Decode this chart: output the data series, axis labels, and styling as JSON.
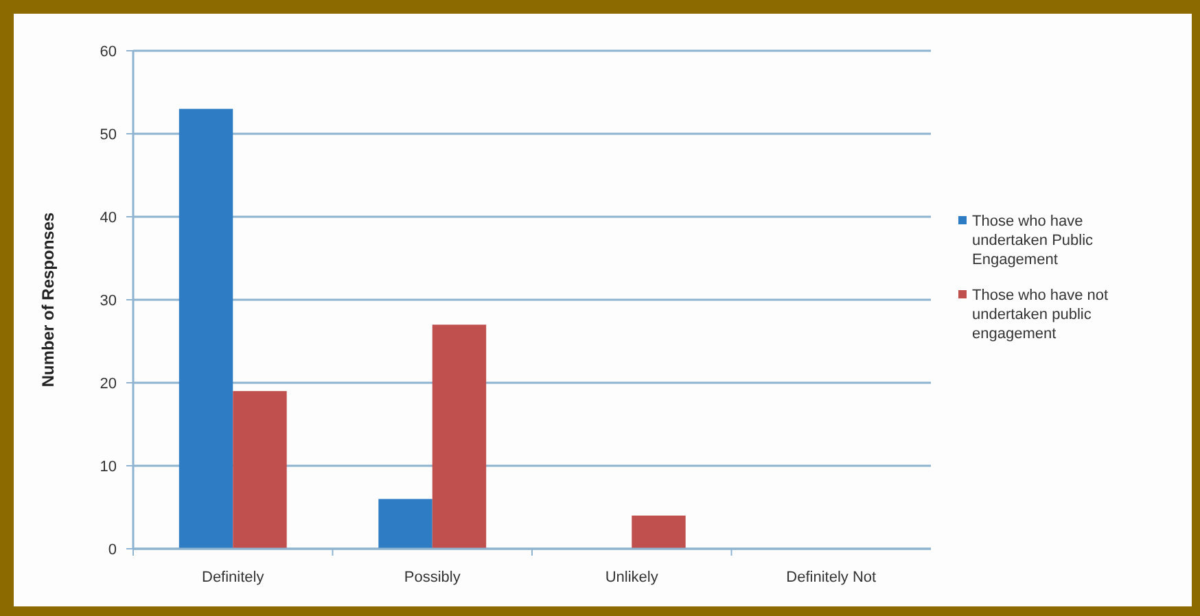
{
  "chart_data": {
    "type": "bar",
    "ylabel": "Number of Responses",
    "categories": [
      "Definitely",
      "Possibly",
      "Unlikely",
      "Definitely Not"
    ],
    "series": [
      {
        "name": "Those who have undertaken Public Engagement",
        "color": "#2e7dc4",
        "values": [
          53,
          6,
          0,
          0
        ]
      },
      {
        "name": "Those who have not undertaken public engagement",
        "color": "#c0504d",
        "values": [
          19,
          27,
          4,
          0
        ]
      }
    ],
    "ylim": [
      0,
      60
    ],
    "yticks": [
      0,
      10,
      20,
      30,
      40,
      50,
      60
    ],
    "grid": "y",
    "legend": "right"
  }
}
